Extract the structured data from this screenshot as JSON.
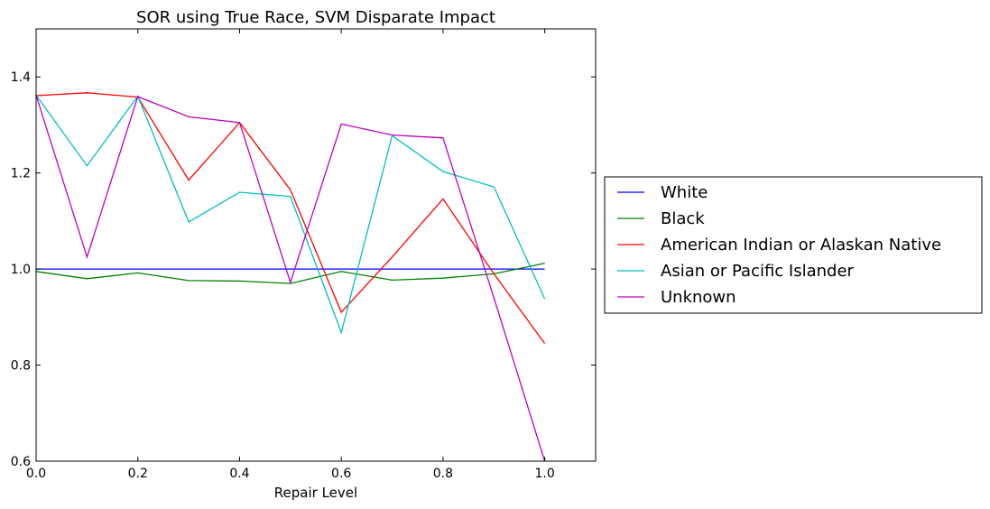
{
  "chart_data": {
    "type": "line",
    "title": "SOR using True Race, SVM Disparate Impact",
    "xlabel": "Repair Level",
    "ylabel": "",
    "xlim": [
      0.0,
      1.1
    ],
    "ylim": [
      0.6,
      1.5
    ],
    "xticks": [
      "0.0",
      "0.2",
      "0.4",
      "0.6",
      "0.8",
      "1.0"
    ],
    "yticks": [
      "0.6",
      "0.8",
      "1.0",
      "1.2",
      "1.4"
    ],
    "grid": false,
    "legend_position": "outside-right",
    "x": [
      0.0,
      0.1,
      0.2,
      0.3,
      0.4,
      0.5,
      0.6,
      0.7,
      0.8,
      0.9,
      1.0
    ],
    "series": [
      {
        "name": "White",
        "color": "#0000ff",
        "values": [
          1.0,
          1.0,
          1.0,
          1.0,
          1.0,
          1.0,
          1.0,
          1.0,
          1.0,
          1.0,
          1.0
        ]
      },
      {
        "name": "Black",
        "color": "#008000",
        "values": [
          0.995,
          0.98,
          0.992,
          0.976,
          0.975,
          0.97,
          0.995,
          0.977,
          0.981,
          0.99,
          1.012
        ]
      },
      {
        "name": "American Indian or Alaskan Native",
        "color": "#ff0000",
        "values": [
          1.361,
          1.367,
          1.358,
          1.185,
          1.305,
          1.165,
          0.91,
          1.025,
          1.146,
          0.99,
          0.845
        ]
      },
      {
        "name": "Asian or Pacific Islander",
        "color": "#00bfbf",
        "values": [
          1.362,
          1.215,
          1.36,
          1.098,
          1.16,
          1.151,
          0.868,
          1.278,
          1.203,
          1.171,
          0.938
        ]
      },
      {
        "name": "Unknown",
        "color": "#bf00bf",
        "values": [
          1.362,
          1.025,
          1.359,
          1.317,
          1.305,
          0.972,
          1.302,
          1.279,
          1.273,
          0.94,
          0.6
        ]
      }
    ]
  }
}
